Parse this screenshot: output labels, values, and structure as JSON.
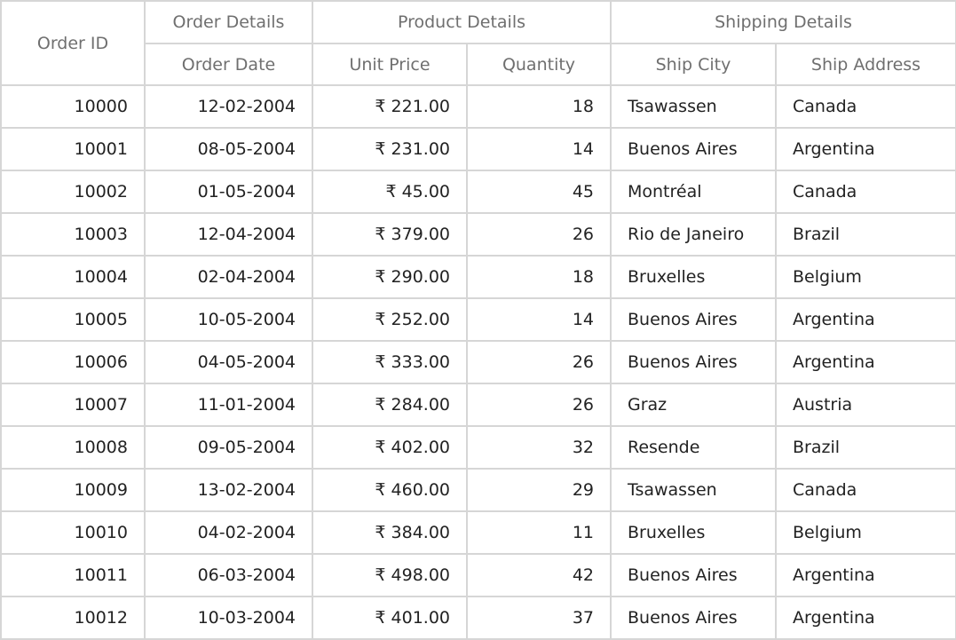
{
  "header": {
    "order_id": "Order ID",
    "order_details": "Order Details",
    "product_details": "Product Details",
    "shipping_details": "Shipping Details",
    "order_date": "Order Date",
    "unit_price": "Unit Price",
    "quantity": "Quantity",
    "ship_city": "Ship City",
    "ship_address": "Ship Address"
  },
  "rows": [
    {
      "id": "10000",
      "date": "12-02-2004",
      "price": "₹ 221.00",
      "qty": "18",
      "city": "Tsawassen",
      "address": "Canada"
    },
    {
      "id": "10001",
      "date": "08-05-2004",
      "price": "₹ 231.00",
      "qty": "14",
      "city": "Buenos Aires",
      "address": "Argentina"
    },
    {
      "id": "10002",
      "date": "01-05-2004",
      "price": "₹ 45.00",
      "qty": "45",
      "city": "Montréal",
      "address": "Canada"
    },
    {
      "id": "10003",
      "date": "12-04-2004",
      "price": "₹ 379.00",
      "qty": "26",
      "city": "Rio de Janeiro",
      "address": "Brazil"
    },
    {
      "id": "10004",
      "date": "02-04-2004",
      "price": "₹ 290.00",
      "qty": "18",
      "city": "Bruxelles",
      "address": "Belgium"
    },
    {
      "id": "10005",
      "date": "10-05-2004",
      "price": "₹ 252.00",
      "qty": "14",
      "city": "Buenos Aires",
      "address": "Argentina"
    },
    {
      "id": "10006",
      "date": "04-05-2004",
      "price": "₹ 333.00",
      "qty": "26",
      "city": "Buenos Aires",
      "address": "Argentina"
    },
    {
      "id": "10007",
      "date": "11-01-2004",
      "price": "₹ 284.00",
      "qty": "26",
      "city": "Graz",
      "address": "Austria"
    },
    {
      "id": "10008",
      "date": "09-05-2004",
      "price": "₹ 402.00",
      "qty": "32",
      "city": "Resende",
      "address": "Brazil"
    },
    {
      "id": "10009",
      "date": "13-02-2004",
      "price": "₹ 460.00",
      "qty": "29",
      "city": "Tsawassen",
      "address": "Canada"
    },
    {
      "id": "10010",
      "date": "04-02-2004",
      "price": "₹ 384.00",
      "qty": "11",
      "city": "Bruxelles",
      "address": "Belgium"
    },
    {
      "id": "10011",
      "date": "06-03-2004",
      "price": "₹ 498.00",
      "qty": "42",
      "city": "Buenos Aires",
      "address": "Argentina"
    },
    {
      "id": "10012",
      "date": "10-03-2004",
      "price": "₹ 401.00",
      "qty": "37",
      "city": "Buenos Aires",
      "address": "Argentina"
    }
  ]
}
